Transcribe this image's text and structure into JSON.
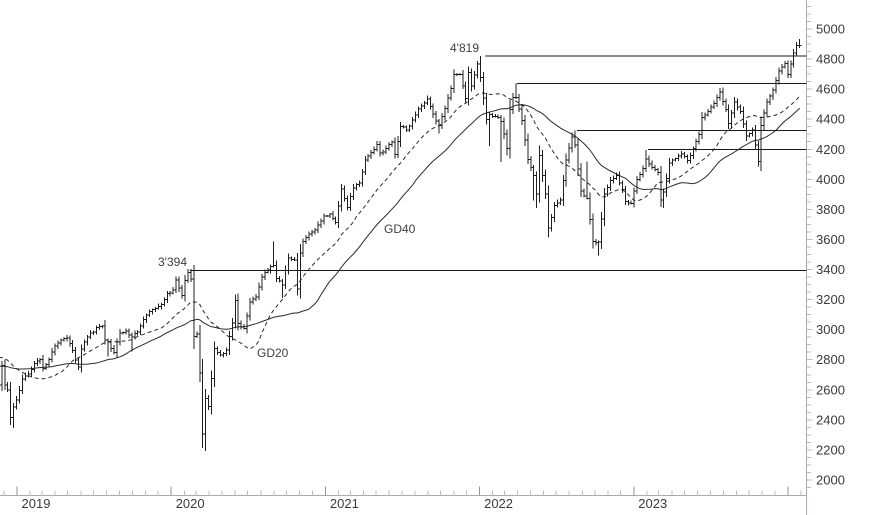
{
  "chart_data": {
    "type": "ohlc",
    "timeframe": "weekly",
    "title": "",
    "y_axis": {
      "min": 2000,
      "max": 5000,
      "label_step": 200,
      "minor_tick_step": 50,
      "side": "right"
    },
    "x_axis": {
      "year_labels": [
        "2019",
        "2020",
        "2021",
        "2022",
        "2023"
      ],
      "tick_years": [
        2019,
        2020,
        2021,
        2022,
        2023,
        2024
      ],
      "minor_ticks": "monthly",
      "range_start": "2018-11",
      "range_end": "2024-01"
    },
    "moving_averages": [
      {
        "label": "GD20",
        "period_weeks": 20,
        "line_style": "dashed"
      },
      {
        "label": "GD40",
        "period_weeks": 40,
        "line_style": "solid"
      }
    ],
    "horizontal_lines": [
      {
        "label": "4'819",
        "value": 4819,
        "from_week": 164.6
      },
      {
        "label": "",
        "value": 4637,
        "from_week": 175.3
      },
      {
        "label": "",
        "value": 4325,
        "from_week": 195.6
      },
      {
        "label": "",
        "value": 4200,
        "from_week": 219.7
      },
      {
        "label": "3'394",
        "value": 3394,
        "from_week": 64.7
      }
    ],
    "weekly_close_anchors": {
      "start_date_week0": "2018-11-19",
      "format": "[week_index, close, high_override, low_override] (negative weeks = MA warm-up history)",
      "points": [
        [
          -40,
          2732
        ],
        [
          -35,
          2656
        ],
        [
          -30,
          2670
        ],
        [
          -25,
          2713
        ],
        [
          -20,
          2760
        ],
        [
          -15,
          2850
        ],
        [
          -10,
          2915
        ],
        [
          -7,
          2885
        ],
        [
          -5,
          2768
        ],
        [
          -3,
          2658
        ],
        [
          -2,
          2781
        ],
        [
          -1,
          2736
        ],
        [
          0,
          2633
        ],
        [
          1,
          2760
        ],
        [
          2,
          2633
        ],
        [
          3,
          2600
        ],
        [
          4,
          2417
        ],
        [
          5,
          2486,
          null,
          2347
        ],
        [
          6,
          2532
        ],
        [
          8,
          2671
        ],
        [
          10,
          2706
        ],
        [
          12,
          2776
        ],
        [
          14,
          2803
        ],
        [
          15,
          2743
        ],
        [
          17,
          2801
        ],
        [
          19,
          2893
        ],
        [
          22,
          2940
        ],
        [
          23,
          2946
        ],
        [
          25,
          2860
        ],
        [
          27,
          2752
        ],
        [
          28,
          2873
        ],
        [
          30,
          2950
        ],
        [
          33,
          3014
        ],
        [
          35,
          3026
        ],
        [
          36,
          2932
        ],
        [
          37,
          2919,
          null,
          2822
        ],
        [
          39,
          2847
        ],
        [
          41,
          2979
        ],
        [
          43,
          2992
        ],
        [
          45,
          2952,
          null,
          2855
        ],
        [
          47,
          2986
        ],
        [
          49,
          3067
        ],
        [
          51,
          3120
        ],
        [
          53,
          3141
        ],
        [
          55,
          3169
        ],
        [
          57,
          3240
        ],
        [
          59,
          3265
        ],
        [
          60,
          3330
        ],
        [
          62,
          3226
        ],
        [
          63,
          3328
        ],
        [
          64,
          3380
        ],
        [
          65,
          3338,
          3394
        ],
        [
          66,
          2954
        ],
        [
          67,
          2972
        ],
        [
          68,
          2711
        ],
        [
          69,
          2305
        ],
        [
          70,
          2541,
          null,
          2192
        ],
        [
          71,
          2489
        ],
        [
          73,
          2875
        ],
        [
          75,
          2831
        ],
        [
          77,
          2864
        ],
        [
          79,
          3044
        ],
        [
          80,
          3194
        ],
        [
          81,
          3041
        ],
        [
          83,
          3009
        ],
        [
          85,
          3185
        ],
        [
          87,
          3216
        ],
        [
          89,
          3351
        ],
        [
          91,
          3397
        ],
        [
          93,
          3427,
          3588
        ],
        [
          94,
          3341
        ],
        [
          96,
          3298,
          null,
          3209
        ],
        [
          98,
          3477
        ],
        [
          100,
          3465
        ],
        [
          101,
          3270
        ],
        [
          102,
          3509
        ],
        [
          103,
          3585
        ],
        [
          105,
          3638
        ],
        [
          107,
          3663
        ],
        [
          110,
          3756
        ],
        [
          112,
          3768
        ],
        [
          114,
          3714
        ],
        [
          116,
          3935
        ],
        [
          118,
          3811
        ],
        [
          120,
          3943
        ],
        [
          122,
          3975
        ],
        [
          124,
          4129
        ],
        [
          126,
          4180
        ],
        [
          128,
          4233
        ],
        [
          129,
          4174
        ],
        [
          131,
          4204
        ],
        [
          133,
          4247
        ],
        [
          134,
          4166
        ],
        [
          136,
          4352
        ],
        [
          138,
          4327
        ],
        [
          140,
          4395
        ],
        [
          142,
          4468
        ],
        [
          144,
          4509
        ],
        [
          145,
          4535
        ],
        [
          147,
          4433
        ],
        [
          149,
          4357,
          null,
          4306
        ],
        [
          151,
          4471
        ],
        [
          153,
          4605
        ],
        [
          154,
          4698
        ],
        [
          156,
          4698
        ],
        [
          158,
          4538
        ],
        [
          159,
          4712
        ],
        [
          160,
          4621
        ],
        [
          162,
          4766
        ],
        [
          163,
          4677,
          4819
        ],
        [
          165,
          4398
        ],
        [
          166,
          4432,
          null,
          4222
        ],
        [
          168,
          4419
        ],
        [
          170,
          4385,
          null,
          4115
        ],
        [
          172,
          4204,
          null,
          4158
        ],
        [
          173,
          4463
        ],
        [
          174,
          4543
        ],
        [
          175,
          4546,
          4637
        ],
        [
          177,
          4393
        ],
        [
          179,
          4132
        ],
        [
          181,
          4024,
          null,
          3859
        ],
        [
          182,
          3901,
          null,
          3810
        ],
        [
          183,
          4158
        ],
        [
          185,
          3901
        ],
        [
          186,
          3675,
          null,
          3636
        ],
        [
          188,
          3825
        ],
        [
          190,
          3863
        ],
        [
          192,
          4130
        ],
        [
          194,
          4280
        ],
        [
          195,
          4228,
          4325
        ],
        [
          197,
          3924
        ],
        [
          199,
          3873,
          4119
        ],
        [
          201,
          3586
        ],
        [
          203,
          3583,
          null,
          3492
        ],
        [
          205,
          3901
        ],
        [
          207,
          3993
        ],
        [
          209,
          4026
        ],
        [
          211,
          3934
        ],
        [
          212,
          3852
        ],
        [
          214,
          3839
        ],
        [
          216,
          3999
        ],
        [
          218,
          4071
        ],
        [
          219,
          4136,
          4195
        ],
        [
          221,
          4079
        ],
        [
          223,
          4046
        ],
        [
          224,
          3862
        ],
        [
          225,
          3917,
          null,
          3808
        ],
        [
          227,
          4109
        ],
        [
          229,
          4138
        ],
        [
          231,
          4169
        ],
        [
          233,
          4124
        ],
        [
          235,
          4205
        ],
        [
          237,
          4299
        ],
        [
          238,
          4410,
          4448
        ],
        [
          240,
          4450
        ],
        [
          242,
          4505
        ],
        [
          244,
          4582,
          4607
        ],
        [
          246,
          4464
        ],
        [
          247,
          4370,
          null,
          4335
        ],
        [
          249,
          4516
        ],
        [
          251,
          4450
        ],
        [
          253,
          4288
        ],
        [
          255,
          4328
        ],
        [
          257,
          4117,
          null,
          4103
        ],
        [
          258,
          4358
        ],
        [
          260,
          4514
        ],
        [
          262,
          4595
        ],
        [
          264,
          4719
        ],
        [
          266,
          4770
        ],
        [
          267,
          4697
        ],
        [
          269,
          4840
        ],
        [
          270,
          4891,
          4907
        ],
        [
          271,
          4890,
          4932
        ]
      ]
    }
  },
  "colors": {
    "background": "#ffffff",
    "bar": "#1f1f1f",
    "ma_line": "#2a2a2a",
    "level_line": "#1b1b1b",
    "axis_line": "#a6adb2",
    "tick_minor": "#b8bec2",
    "tick_year": "#8f969b",
    "label_text": "#383c3f"
  }
}
